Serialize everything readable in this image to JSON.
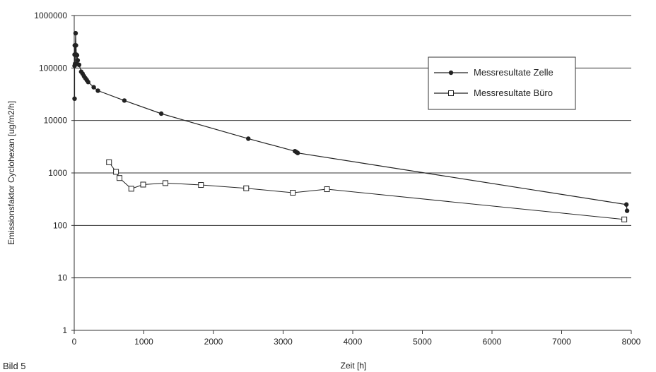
{
  "chart_data": {
    "type": "line",
    "title": "",
    "xlabel": "Zeit [h]",
    "ylabel": "Emissionsfaktor Cyclohexan [ug/m2/h]",
    "yscale": "log",
    "xlim": [
      0,
      8000
    ],
    "ylim": [
      1,
      1000000
    ],
    "x_ticks": [
      "0",
      "1000",
      "2000",
      "3000",
      "4000",
      "5000",
      "6000",
      "7000",
      "8000"
    ],
    "y_ticks": [
      "1",
      "10",
      "100",
      "1000",
      "10000",
      "100000",
      "1000000"
    ],
    "grid": "horizontal",
    "legend_position": "top-right",
    "series": [
      {
        "name": "Messresultate Zelle",
        "color": "#222222",
        "marker": "filled-circle",
        "points": [
          [
            5,
            26000
          ],
          [
            5,
            110000
          ],
          [
            5,
            180000
          ],
          [
            8,
            270000
          ],
          [
            12,
            120000
          ],
          [
            20,
            460000
          ],
          [
            25,
            270000
          ],
          [
            30,
            180000
          ],
          [
            35,
            120000
          ],
          [
            40,
            175000
          ],
          [
            50,
            140000
          ],
          [
            70,
            115000
          ],
          [
            100,
            85000
          ],
          [
            120,
            78000
          ],
          [
            140,
            70000
          ],
          [
            160,
            64000
          ],
          [
            180,
            59000
          ],
          [
            200,
            54000
          ],
          [
            280,
            43000
          ],
          [
            340,
            37000
          ],
          [
            720,
            24000
          ],
          [
            1250,
            13500
          ],
          [
            2500,
            4500
          ],
          [
            3170,
            2600
          ],
          [
            3190,
            2500
          ],
          [
            3210,
            2400
          ],
          [
            7930,
            250
          ],
          [
            7940,
            190
          ]
        ]
      },
      {
        "name": "Messresultate Büro",
        "color": "#222222",
        "marker": "open-square",
        "points": [
          [
            500,
            1600
          ],
          [
            600,
            1050
          ],
          [
            650,
            800
          ],
          [
            820,
            500
          ],
          [
            990,
            600
          ],
          [
            1310,
            640
          ],
          [
            1820,
            590
          ],
          [
            2470,
            510
          ],
          [
            3140,
            420
          ],
          [
            3630,
            490
          ],
          [
            7900,
            130
          ]
        ]
      }
    ]
  },
  "caption": "Bild 5"
}
